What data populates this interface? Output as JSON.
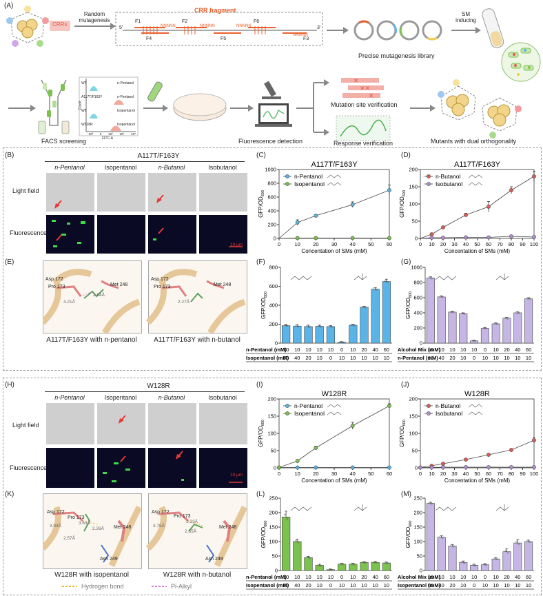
{
  "panel_labels": {
    "A": "(A)",
    "B": "(B)",
    "C": "(C)",
    "D": "(D)",
    "E": "(E)",
    "F": "(F)",
    "G": "(G)",
    "H": "(H)",
    "I": "(I)",
    "J": "(J)",
    "K": "(K)",
    "L": "(L)",
    "M": "(M)"
  },
  "workflow": {
    "crrs": "CRRs",
    "random_mutagenesis": "Random\nmutagenesis",
    "crr_fragment": "CRR fragment",
    "primers_top": [
      "F1",
      "F2",
      "F6"
    ],
    "primers_bottom": [
      "F4",
      "F5",
      "F3"
    ],
    "nnnnn": "NNNNN",
    "five_prime": "5'",
    "three_prime": "3'",
    "library": "Precise mutagenesis library",
    "sm_inducing": "SM\ninducing",
    "facs": "FACS screening",
    "facs_rows": [
      {
        "left": "WT",
        "right": "n-Pentanol"
      },
      {
        "left": "A117T/F163Y",
        "right": "n-Pentanol"
      },
      {
        "left": "WT",
        "right": "Isopentanol"
      },
      {
        "left": "W128R",
        "right": "Isopentanol"
      }
    ],
    "facs_axis": "FITC-A",
    "facs_count": "Count",
    "facs_ticks": [
      "-10³",
      "0",
      "10³",
      "10⁴",
      "10⁵"
    ],
    "fluorescence_detection": "Fluorescence detection",
    "mutation_site": "Mutation site verification",
    "response_verification": "Response verification",
    "dual_orthogonality": "Mutants with dual orthogonality"
  },
  "panelB": {
    "title": "A117T/F163Y",
    "columns": [
      "n-Pentanol",
      "Isopentanol",
      "n-Butanol",
      "Isobutanol"
    ],
    "rows": [
      "Light field",
      "Fluorescence"
    ],
    "scale": "10 μm"
  },
  "panelH": {
    "title": "W128R",
    "columns": [
      "n-Pentanol",
      "Isopentanol",
      "n-Butanol",
      "Isobutanol"
    ],
    "rows": [
      "Light field",
      "Fluorescence"
    ],
    "scale": "10 μm"
  },
  "panelE": {
    "left_caption": "A117T/F163Y with n-pentanol",
    "right_caption": "A117T/F163Y with n-butanol",
    "left_labels": [
      "Asp 172",
      "Pro 173",
      "Met 248",
      "4.21Å",
      "2.64Å"
    ],
    "right_labels": [
      "Asp 172",
      "Pro 173",
      "Met 248",
      "2.27Å"
    ]
  },
  "panelK": {
    "left_caption": "W128R  with isopentanol",
    "right_caption": "W128R  with n-butanol",
    "left_labels": [
      "Asp 172",
      "Pro 173",
      "Met 248",
      "Asn 249",
      "3.94Å",
      "3.63Å",
      "2.26Å",
      "2.57Å"
    ],
    "right_labels": [
      "Asp 172",
      "Pro 173",
      "Met 248",
      "Asn 249",
      "3.75Å",
      "2.23Å",
      "2.65Å"
    ],
    "legend": [
      "Hydrogen bond",
      "Pi-Alkyl"
    ],
    "legend_colors": [
      "#e8b830",
      "#e27bd6"
    ]
  },
  "colors": {
    "blue": "#5ab4e8",
    "green": "#7cc24e",
    "red": "#e05a4e",
    "purple": "#b58ed8",
    "lavender": "#c6b6e6",
    "orange": "#f07a2e"
  },
  "chart_data": [
    {
      "id": "C",
      "type": "scatter",
      "title": "A117T/F163Y",
      "xlabel": "Concentation of SMs (mM)",
      "ylabel": "GFP/OD600",
      "xlim": [
        0,
        60
      ],
      "ylim": [
        0,
        1000
      ],
      "xticks": [
        0,
        10,
        20,
        30,
        40,
        50,
        60
      ],
      "yticks": [
        0,
        200,
        400,
        600,
        800,
        1000
      ],
      "series": [
        {
          "name": "n-Pentanol",
          "color": "#5ab4e8",
          "x": [
            10,
            20,
            40,
            60
          ],
          "y": [
            230,
            330,
            490,
            700
          ],
          "err": [
            40,
            15,
            40,
            75
          ]
        },
        {
          "name": "Isopentanol",
          "color": "#7cc24e",
          "x": [
            10,
            20,
            40,
            60
          ],
          "y": [
            5,
            5,
            5,
            5
          ],
          "err": [
            0,
            0,
            0,
            0
          ]
        }
      ]
    },
    {
      "id": "D",
      "type": "scatter",
      "title": "A117T/F163Y",
      "xlabel": "Concentation of SMs (mM)",
      "ylabel": "GFP/OD600",
      "xlim": [
        0,
        100
      ],
      "ylim": [
        0,
        200
      ],
      "xticks": [
        0,
        10,
        20,
        30,
        40,
        50,
        60,
        70,
        80,
        90,
        100
      ],
      "yticks": [
        0,
        50,
        100,
        150,
        200
      ],
      "series": [
        {
          "name": "n-Butanol",
          "color": "#e05a4e",
          "x": [
            10,
            20,
            40,
            60,
            80,
            100
          ],
          "y": [
            12,
            32,
            68,
            92,
            140,
            180
          ],
          "err": [
            3,
            4,
            5,
            15,
            10,
            15
          ]
        },
        {
          "name": "Isobutanol",
          "color": "#b58ed8",
          "x": [
            10,
            20,
            40,
            60,
            80,
            100
          ],
          "y": [
            2,
            2,
            3,
            3,
            6,
            4
          ],
          "err": [
            1,
            1,
            1,
            1,
            1,
            1
          ]
        }
      ]
    },
    {
      "id": "F",
      "type": "bar",
      "ylabel": "GFP/OD600",
      "ylim": [
        0,
        800
      ],
      "yticks": [
        0,
        200,
        400,
        600,
        800
      ],
      "color": "#5ab4e8",
      "values": [
        185,
        180,
        175,
        178,
        175,
        10,
        190,
        380,
        570,
        650
      ],
      "err": [
        15,
        15,
        15,
        12,
        12,
        5,
        10,
        10,
        15,
        25
      ],
      "rows": [
        {
          "label": "n-Pentanol (mM)",
          "values": [
            "10",
            "10",
            "10",
            "10",
            "10",
            "0",
            "10",
            "20",
            "40",
            "60"
          ]
        },
        {
          "label": "Isopentanol (mM)",
          "values": [
            "60",
            "40",
            "20",
            "10",
            "0",
            "10",
            "10",
            "10",
            "10",
            "10"
          ]
        }
      ]
    },
    {
      "id": "G",
      "type": "bar",
      "ylabel": "GFP/OD600",
      "ylim": [
        0,
        1000
      ],
      "yticks": [
        0,
        200,
        400,
        600,
        800,
        1000
      ],
      "color": "#c6b6e6",
      "values": [
        860,
        610,
        410,
        390,
        30,
        195,
        255,
        330,
        400,
        585
      ],
      "err": [
        15,
        15,
        10,
        10,
        8,
        10,
        12,
        10,
        12,
        15
      ],
      "rows": [
        {
          "label": "Alcohol Mix (mM)",
          "values": [
            "10",
            "10",
            "10",
            "10",
            "10",
            "0",
            "10",
            "20",
            "40",
            "60"
          ]
        },
        {
          "label": "n-Pentanol (mM)",
          "values": [
            "60",
            "40",
            "20",
            "10",
            "0",
            "10",
            "10",
            "10",
            "10",
            "10"
          ]
        }
      ]
    },
    {
      "id": "I",
      "type": "scatter",
      "title": "W128R",
      "xlabel": "Concentation of SMs (mM)",
      "ylabel": "GFP/OD600",
      "xlim": [
        0,
        60
      ],
      "ylim": [
        0,
        200
      ],
      "xticks": [
        0,
        10,
        20,
        30,
        40,
        50,
        60
      ],
      "yticks": [
        0,
        50,
        100,
        150,
        200
      ],
      "series": [
        {
          "name": "n-Pentanol",
          "color": "#5ab4e8",
          "x": [
            0,
            10,
            20,
            40,
            60
          ],
          "y": [
            1,
            1,
            1,
            1,
            1
          ],
          "err": [
            0,
            0,
            0,
            0,
            0
          ]
        },
        {
          "name": "Isopentanol",
          "color": "#7cc24e",
          "x": [
            0,
            10,
            20,
            40,
            60
          ],
          "y": [
            1,
            20,
            58,
            122,
            180
          ],
          "err": [
            0,
            3,
            5,
            10,
            6
          ]
        }
      ]
    },
    {
      "id": "J",
      "type": "scatter",
      "title": "W128R",
      "xlabel": "Concentation of SMs (mM)",
      "ylabel": "GFP/OD600",
      "xlim": [
        0,
        100
      ],
      "ylim": [
        0,
        200
      ],
      "xticks": [
        0,
        10,
        20,
        30,
        40,
        50,
        60,
        70,
        80,
        90,
        100
      ],
      "yticks": [
        0,
        50,
        100,
        150,
        200
      ],
      "series": [
        {
          "name": "n-Butanol",
          "color": "#e05a4e",
          "x": [
            0,
            10,
            20,
            40,
            60,
            80,
            100
          ],
          "y": [
            1,
            6,
            12,
            24,
            38,
            52,
            80
          ],
          "err": [
            0,
            1,
            2,
            2,
            3,
            3,
            8
          ]
        },
        {
          "name": "Isobutanol",
          "color": "#b58ed8",
          "x": [
            0,
            10,
            20,
            40,
            60,
            80,
            100
          ],
          "y": [
            1,
            1,
            2,
            2,
            2,
            2,
            2
          ],
          "err": [
            0,
            0,
            0,
            0,
            0,
            0,
            0
          ]
        }
      ]
    },
    {
      "id": "L",
      "type": "bar",
      "ylabel": "GFP/OD600",
      "ylim": [
        0,
        250
      ],
      "yticks": [
        0,
        50,
        100,
        150,
        200,
        250
      ],
      "color": "#7cc24e",
      "values": [
        185,
        100,
        45,
        18,
        3,
        22,
        22,
        28,
        28,
        26
      ],
      "err": [
        20,
        8,
        4,
        4,
        2,
        3,
        3,
        3,
        3,
        3
      ],
      "rows": [
        {
          "label": "n-Pentanol (mM)",
          "values": [
            "10",
            "10",
            "10",
            "10",
            "10",
            "0",
            "10",
            "20",
            "40",
            "60"
          ]
        },
        {
          "label": "Isopentanol (mM)",
          "values": [
            "60",
            "40",
            "20",
            "10",
            "0",
            "10",
            "10",
            "10",
            "10",
            "10"
          ]
        }
      ]
    },
    {
      "id": "M",
      "type": "bar",
      "ylabel": "GFP/OD600",
      "ylim": [
        0,
        250
      ],
      "yticks": [
        0,
        50,
        100,
        150,
        200,
        250
      ],
      "color": "#c6b6e6",
      "values": [
        232,
        115,
        85,
        28,
        18,
        20,
        40,
        65,
        95,
        100
      ],
      "err": [
        4,
        5,
        5,
        5,
        4,
        4,
        4,
        10,
        12,
        5
      ],
      "rows": [
        {
          "label": "Alcohol Mix (mM)",
          "values": [
            "10",
            "10",
            "10",
            "10",
            "10",
            "0",
            "10",
            "20",
            "40",
            "60"
          ]
        },
        {
          "label": "Isopentanol (mM)",
          "values": [
            "60",
            "40",
            "20",
            "10",
            "0",
            "10",
            "10",
            "10",
            "10",
            "10"
          ]
        }
      ]
    }
  ]
}
